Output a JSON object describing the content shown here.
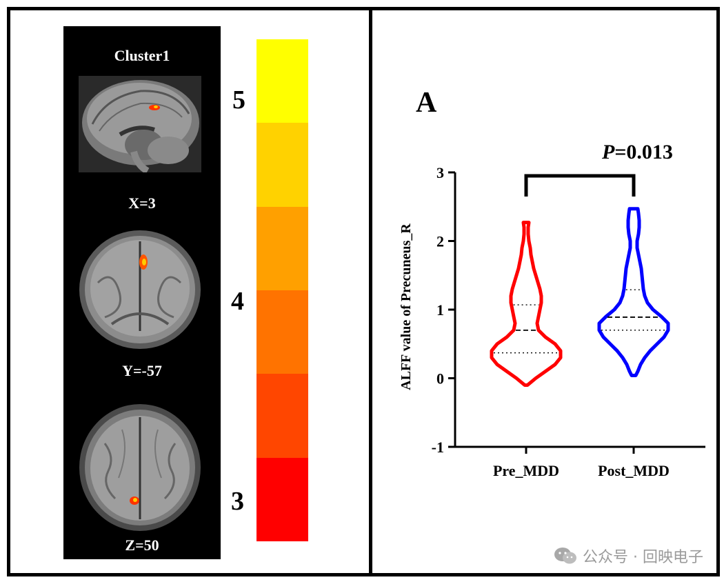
{
  "left_panel": {
    "title": "Cluster1",
    "slices": [
      {
        "label": "X=3",
        "view": "sagittal"
      },
      {
        "label": "Y=-57",
        "view": "coronal"
      },
      {
        "label": "Z=50",
        "view": "axial"
      }
    ],
    "colorbar": {
      "ticks": [
        "5",
        "4",
        "3"
      ],
      "colors": [
        "#ffff00",
        "#ffd200",
        "#ffa000",
        "#ff7300",
        "#ff4600",
        "#ff0000"
      ]
    }
  },
  "chart_data": {
    "type": "violin",
    "panel_label": "A",
    "ylabel": "ALFF value of Precuneus_R",
    "ylim": [
      -1,
      3
    ],
    "yticks": [
      3,
      2,
      1,
      0,
      -1
    ],
    "categories": [
      "Pre_MDD",
      "Post_MDD"
    ],
    "series": [
      {
        "name": "Pre_MDD",
        "color": "#ff0000",
        "min": -0.1,
        "max": 2.27,
        "q1": 0.37,
        "median": 0.7,
        "q3": 1.07
      },
      {
        "name": "Post_MDD",
        "color": "#0000ff",
        "min": 0.04,
        "max": 2.47,
        "q1": 0.7,
        "median": 0.89,
        "q3": 1.29
      }
    ],
    "annotation": {
      "p_label": "P",
      "p_value": "=0.013"
    }
  },
  "watermark": {
    "text": "公众号 · 回映电子",
    "icon": "wechat-icon"
  }
}
